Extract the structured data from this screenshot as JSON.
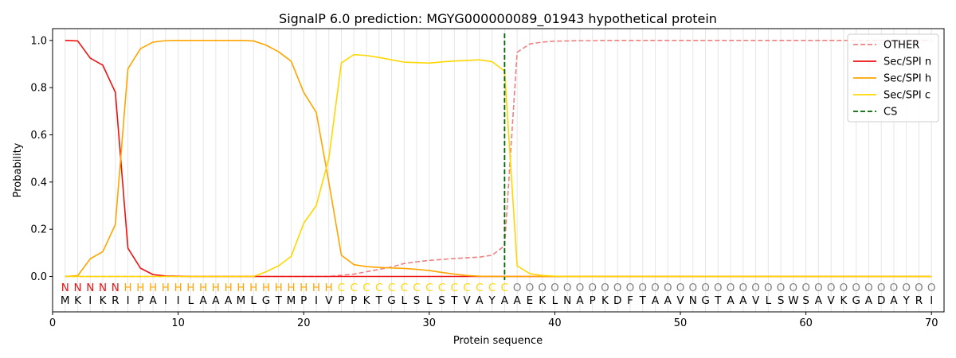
{
  "chart_data": {
    "type": "line",
    "title": "SignalP 6.0 prediction: MGYG000000089_01943 hypothetical protein",
    "xlabel": "Protein sequence",
    "ylabel": "Probability",
    "xlim": [
      0,
      71
    ],
    "ylim": [
      -0.15,
      1.05
    ],
    "x_ticks": [
      0,
      10,
      20,
      30,
      40,
      50,
      60,
      70
    ],
    "y_ticks": [
      0.0,
      0.2,
      0.4,
      0.6,
      0.8,
      1.0
    ],
    "x_tick_labels": [
      "0",
      "10",
      "20",
      "30",
      "40",
      "50",
      "60",
      "70"
    ],
    "y_tick_labels": [
      "0.0",
      "0.2",
      "0.4",
      "0.6",
      "0.8",
      "1.0"
    ],
    "grid": "vertical lines at each residue",
    "legend_position": "top-right",
    "sequence": [
      "M",
      "K",
      "I",
      "K",
      "R",
      "I",
      "P",
      "A",
      "I",
      "I",
      "L",
      "A",
      "A",
      "A",
      "M",
      "L",
      "G",
      "T",
      "M",
      "P",
      "I",
      "V",
      "P",
      "P",
      "K",
      "T",
      "G",
      "L",
      "S",
      "L",
      "S",
      "T",
      "V",
      "A",
      "Y",
      "A",
      "A",
      "E",
      "K",
      "L",
      "N",
      "A",
      "P",
      "K",
      "D",
      "F",
      "T",
      "A",
      "A",
      "V",
      "N",
      "G",
      "T",
      "A",
      "A",
      "V",
      "L",
      "S",
      "W",
      "S",
      "A",
      "V",
      "K",
      "G",
      "A",
      "D",
      "A",
      "Y",
      "R",
      "I"
    ],
    "annotation": [
      "N",
      "N",
      "N",
      "N",
      "N",
      "H",
      "H",
      "H",
      "H",
      "H",
      "H",
      "H",
      "H",
      "H",
      "H",
      "H",
      "H",
      "H",
      "H",
      "H",
      "H",
      "H",
      "C",
      "C",
      "C",
      "C",
      "C",
      "C",
      "C",
      "C",
      "C",
      "C",
      "C",
      "C",
      "C",
      "C",
      "O",
      "O",
      "O",
      "O",
      "O",
      "O",
      "O",
      "O",
      "O",
      "O",
      "O",
      "O",
      "O",
      "O",
      "O",
      "O",
      "O",
      "O",
      "O",
      "O",
      "O",
      "O",
      "O",
      "O",
      "O",
      "O",
      "O",
      "O",
      "O",
      "O",
      "O",
      "O",
      "O",
      "O"
    ],
    "annotation_colors": {
      "N": "#ee1111",
      "H": "#ffa500",
      "C": "#ffd700",
      "O": "#808080"
    },
    "cleavage_site": 36,
    "series": [
      {
        "name": "OTHER",
        "color": "#f08080",
        "dash": "dashed",
        "values": [
          0,
          0,
          0,
          0,
          0,
          0,
          0,
          0,
          0,
          0,
          0,
          0,
          0,
          0,
          0,
          0,
          0,
          0,
          0,
          0,
          0,
          0,
          0.005,
          0.01,
          0.02,
          0.03,
          0.04,
          0.055,
          0.062,
          0.068,
          0.072,
          0.076,
          0.079,
          0.082,
          0.09,
          0.13,
          0.95,
          0.985,
          0.993,
          0.997,
          0.998,
          0.999,
          0.999,
          1,
          1,
          1,
          1,
          1,
          1,
          1,
          1,
          1,
          1,
          1,
          1,
          1,
          1,
          1,
          1,
          1,
          1,
          1,
          1,
          1,
          1,
          1,
          1,
          1,
          1,
          1
        ]
      },
      {
        "name": "Sec/SPI n",
        "color": "#ee1111",
        "dash": "solid",
        "values": [
          1.0,
          0.998,
          0.925,
          0.895,
          0.78,
          0.12,
          0.035,
          0.008,
          0.002,
          0.001,
          0,
          0,
          0,
          0,
          0,
          0,
          0,
          0,
          0,
          0,
          0,
          0,
          0,
          0,
          0,
          0,
          0,
          0,
          0,
          0,
          0,
          0,
          0,
          0,
          0,
          0,
          0,
          0,
          0,
          0,
          0,
          0,
          0,
          0,
          0,
          0,
          0,
          0,
          0,
          0,
          0,
          0,
          0,
          0,
          0,
          0,
          0,
          0,
          0,
          0,
          0,
          0,
          0,
          0,
          0,
          0,
          0,
          0,
          0,
          0
        ]
      },
      {
        "name": "Sec/SPI h",
        "color": "#ffa500",
        "dash": "solid",
        "values": [
          0,
          0.003,
          0.075,
          0.105,
          0.22,
          0.88,
          0.965,
          0.993,
          0.999,
          1.0,
          1.0,
          1.0,
          1.0,
          1.0,
          1.0,
          0.998,
          0.98,
          0.952,
          0.912,
          0.78,
          0.695,
          0.4,
          0.09,
          0.05,
          0.042,
          0.038,
          0.036,
          0.034,
          0.03,
          0.025,
          0.017,
          0.01,
          0.004,
          0.001,
          0,
          0,
          0,
          0,
          0,
          0,
          0,
          0,
          0,
          0,
          0,
          0,
          0,
          0,
          0,
          0,
          0,
          0,
          0,
          0,
          0,
          0,
          0,
          0,
          0,
          0,
          0,
          0,
          0,
          0,
          0,
          0,
          0,
          0,
          0,
          0
        ]
      },
      {
        "name": "Sec/SPI c",
        "color": "#ffd700",
        "dash": "solid",
        "values": [
          0,
          0,
          0,
          0,
          0,
          0,
          0,
          0,
          0,
          0,
          0,
          0,
          0,
          0,
          0,
          0,
          0.02,
          0.045,
          0.085,
          0.225,
          0.3,
          0.5,
          0.905,
          0.94,
          0.936,
          0.928,
          0.918,
          0.908,
          0.906,
          0.904,
          0.909,
          0.913,
          0.915,
          0.918,
          0.91,
          0.87,
          0.045,
          0.012,
          0.004,
          0.001,
          0,
          0,
          0,
          0,
          0,
          0,
          0,
          0,
          0,
          0,
          0,
          0,
          0,
          0,
          0,
          0,
          0,
          0,
          0,
          0,
          0,
          0,
          0,
          0,
          0,
          0,
          0,
          0,
          0,
          0
        ]
      }
    ],
    "cs_legend": {
      "name": "CS",
      "color": "#006400",
      "dash": "dashed"
    }
  }
}
